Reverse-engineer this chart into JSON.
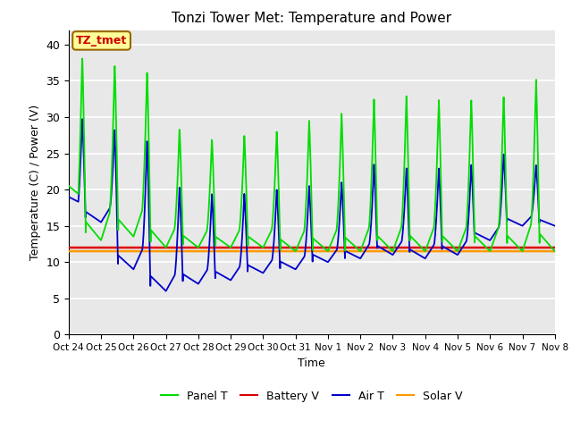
{
  "title": "Tonzi Tower Met: Temperature and Power",
  "xlabel": "Time",
  "ylabel": "Temperature (C) / Power (V)",
  "ylim": [
    0,
    42
  ],
  "yticks": [
    0,
    5,
    10,
    15,
    20,
    25,
    30,
    35,
    40
  ],
  "annotation_text": "TZ_tmet",
  "annotation_color": "#cc0000",
  "annotation_bg": "#ffff99",
  "annotation_border": "#996600",
  "bg_color": "#e8e8e8",
  "grid_color": "#ffffff",
  "panel_T_color": "#00dd00",
  "battery_V_color": "#dd0000",
  "air_T_color": "#0000cc",
  "solar_V_color": "#ff9900",
  "x_tick_labels": [
    "Oct 24",
    "Oct 25",
    "Oct 26",
    "Oct 27",
    "Oct 28",
    "Oct 29",
    "Oct 30",
    "Oct 31",
    "Nov 1",
    "Nov 2",
    "Nov 3",
    "Nov 4",
    "Nov 5",
    "Nov 6",
    "Nov 7",
    "Nov 8"
  ],
  "battery_V_val": 12.0,
  "solar_V_val": 11.5,
  "figsize": [
    6.4,
    4.8
  ],
  "dpi": 100
}
